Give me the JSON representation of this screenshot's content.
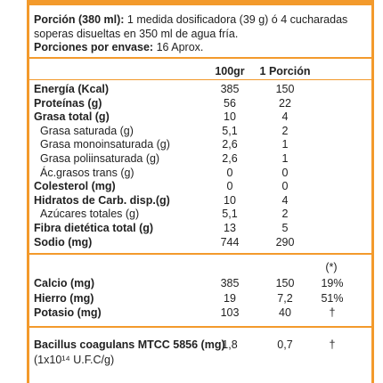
{
  "header": {
    "portion_label": "Porción (380 ml):",
    "portion_text": "1 medida dosificadora (39 g) ó 4 cucharadas",
    "portion_text_2": "soperas disueltas en 350 ml de agua fría.",
    "servings_label": "Porciones por envase:",
    "servings_value": "16 Aprox."
  },
  "columns": [
    "100gr",
    "1 Porción"
  ],
  "rows": [
    [
      "Energía (Kcal)",
      "385",
      "150"
    ],
    [
      "Proteínas (g)",
      "56",
      "22"
    ],
    [
      "Grasa total (g)",
      "10",
      "4"
    ],
    [
      "Grasa saturada (g)",
      "5,1",
      "2"
    ],
    [
      "Grasa monoinsaturada (g)",
      "2,6",
      "1"
    ],
    [
      "Grasa poliinsaturada (g)",
      "2,6",
      "1"
    ],
    [
      "Ác.grasos trans (g)",
      "0",
      "0"
    ],
    [
      "Colesterol (mg)",
      "0",
      "0"
    ],
    [
      "Hidratos de Carb. disp.(g)",
      "10",
      "4"
    ],
    [
      "Azúcares totales (g)",
      "5,1",
      "2"
    ],
    [
      "Fibra dietética total (g)",
      "13",
      "5"
    ],
    [
      "Sodio (mg)",
      "744",
      "290"
    ]
  ],
  "minerals": {
    "note": "(*)",
    "rows": [
      [
        "Calcio (mg)",
        "385",
        "150",
        "19%"
      ],
      [
        "Hierro (mg)",
        "19",
        "7,2",
        "51%"
      ],
      [
        "Potasio (mg)",
        "103",
        "40",
        "†"
      ]
    ]
  },
  "probiotic": {
    "label": "Bacillus coagulans MTCC 5856 (mg)",
    "values": [
      "1,8",
      "0,7",
      "†"
    ],
    "unit": "(1x10¹⁴ U.F.C/g)"
  }
}
